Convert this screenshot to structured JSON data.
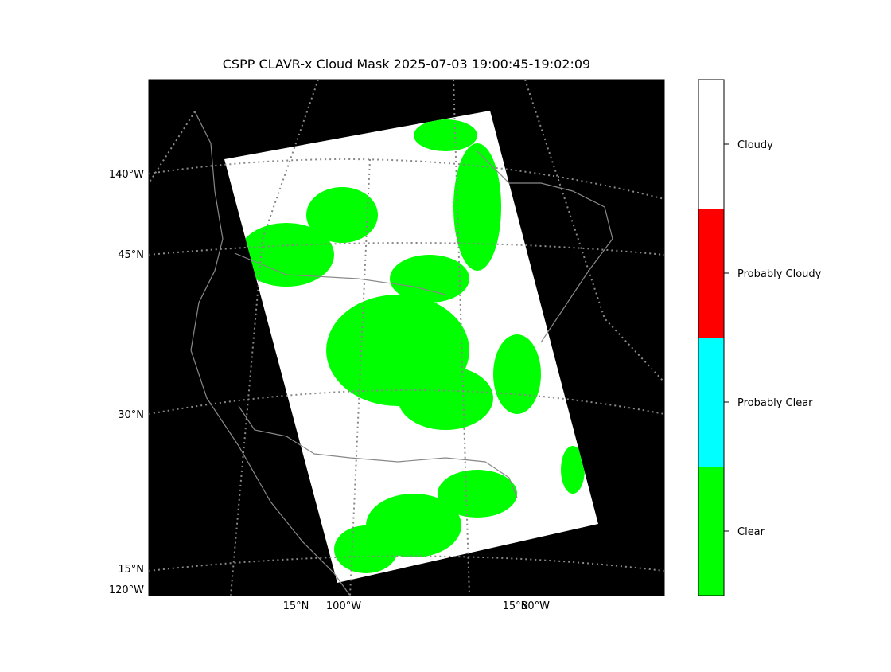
{
  "title": "CSPP CLAVR-x Cloud Mask 2025-07-03 19:00:45-19:02:09",
  "map": {
    "left_labels": [
      "140°W",
      "45°N",
      "30°N",
      "15°N",
      "120°W"
    ],
    "bottom_labels": [
      "15°N",
      "100°W",
      "15°N",
      "80°W"
    ]
  },
  "colorbar": {
    "categories": [
      {
        "label": "Cloudy",
        "color": "#ffffff"
      },
      {
        "label": "Probably Cloudy",
        "color": "#ff0000"
      },
      {
        "label": "Probably Clear",
        "color": "#00ffff"
      },
      {
        "label": "Clear",
        "color": "#00ff00"
      }
    ]
  }
}
